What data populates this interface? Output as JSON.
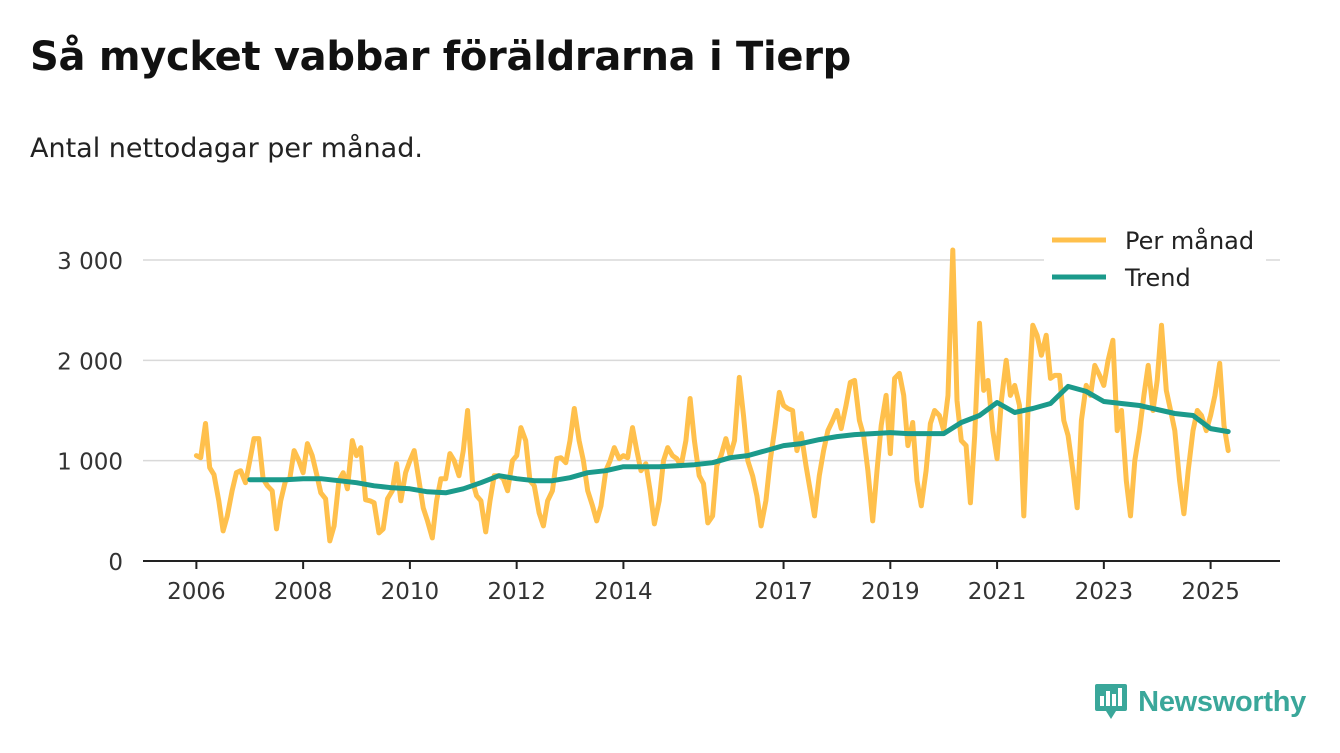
{
  "title": "Så mycket vabbar föräldrarna i Tierp",
  "subtitle": "Antal nettodagar per månad.",
  "brand": {
    "name": "Newsworthy"
  },
  "colors": {
    "monthly": "#ffc04c",
    "trend": "#1b9a8b",
    "grid": "#d9d9d9",
    "axis": "#222222",
    "brand": "#3aa79a"
  },
  "chart_data": {
    "type": "line",
    "title": "Så mycket vabbar föräldrarna i Tierp",
    "xlabel": "",
    "ylabel": "",
    "ylim": [
      0,
      3000
    ],
    "xlim": [
      2005.0,
      2026.3
    ],
    "grid": true,
    "legend_position": "top-right",
    "yticks": [
      0,
      1000,
      2000,
      3000
    ],
    "ytick_labels": [
      "0",
      "1 000",
      "2 000",
      "3 000"
    ],
    "xticks": [
      2006,
      2008,
      2010,
      2012,
      2014,
      2017,
      2019,
      2021,
      2023,
      2025
    ],
    "xtick_labels": [
      "2006",
      "2008",
      "2010",
      "2012",
      "2014",
      "2017",
      "2019",
      "2021",
      "2023",
      "2025"
    ],
    "series": [
      {
        "name": "Per månad",
        "x": [
          2006.0,
          2006.08,
          2006.17,
          2006.25,
          2006.33,
          2006.42,
          2006.5,
          2006.58,
          2006.67,
          2006.75,
          2006.83,
          2006.92,
          2007.0,
          2007.08,
          2007.17,
          2007.25,
          2007.33,
          2007.42,
          2007.5,
          2007.58,
          2007.67,
          2007.75,
          2007.83,
          2007.92,
          2008.0,
          2008.08,
          2008.17,
          2008.25,
          2008.33,
          2008.42,
          2008.5,
          2008.58,
          2008.67,
          2008.75,
          2008.83,
          2008.92,
          2009.0,
          2009.08,
          2009.17,
          2009.25,
          2009.33,
          2009.42,
          2009.5,
          2009.58,
          2009.67,
          2009.75,
          2009.83,
          2009.92,
          2010.0,
          2010.08,
          2010.17,
          2010.25,
          2010.33,
          2010.42,
          2010.5,
          2010.58,
          2010.67,
          2010.75,
          2010.83,
          2010.92,
          2011.0,
          2011.08,
          2011.17,
          2011.25,
          2011.33,
          2011.42,
          2011.5,
          2011.58,
          2011.67,
          2011.75,
          2011.83,
          2011.92,
          2012.0,
          2012.08,
          2012.17,
          2012.25,
          2012.33,
          2012.42,
          2012.5,
          2012.58,
          2012.67,
          2012.75,
          2012.83,
          2012.92,
          2013.0,
          2013.08,
          2013.17,
          2013.25,
          2013.33,
          2013.42,
          2013.5,
          2013.58,
          2013.67,
          2013.75,
          2013.83,
          2013.92,
          2014.0,
          2014.08,
          2014.17,
          2014.25,
          2014.33,
          2014.42,
          2014.5,
          2014.58,
          2014.67,
          2014.75,
          2014.83,
          2014.92,
          2015.0,
          2015.08,
          2015.17,
          2015.25,
          2015.33,
          2015.42,
          2015.5,
          2015.58,
          2015.67,
          2015.75,
          2015.83,
          2015.92,
          2016.0,
          2016.08,
          2016.17,
          2016.25,
          2016.33,
          2016.42,
          2016.5,
          2016.58,
          2016.67,
          2016.75,
          2016.83,
          2016.92,
          2017.0,
          2017.08,
          2017.17,
          2017.25,
          2017.33,
          2017.42,
          2017.5,
          2017.58,
          2017.67,
          2017.75,
          2017.83,
          2017.92,
          2018.0,
          2018.08,
          2018.17,
          2018.25,
          2018.33,
          2018.42,
          2018.5,
          2018.58,
          2018.67,
          2018.75,
          2018.83,
          2018.92,
          2019.0,
          2019.08,
          2019.17,
          2019.25,
          2019.33,
          2019.42,
          2019.5,
          2019.58,
          2019.67,
          2019.75,
          2019.83,
          2019.92,
          2020.0,
          2020.08,
          2020.17,
          2020.25,
          2020.33,
          2020.42,
          2020.5,
          2020.58,
          2020.67,
          2020.75,
          2020.83,
          2020.92,
          2021.0,
          2021.08,
          2021.17,
          2021.25,
          2021.33,
          2021.42,
          2021.5,
          2021.58,
          2021.67,
          2021.75,
          2021.83,
          2021.92,
          2022.0,
          2022.08,
          2022.17,
          2022.25,
          2022.33,
          2022.42,
          2022.5,
          2022.58,
          2022.67,
          2022.75,
          2022.83,
          2022.92,
          2023.0,
          2023.08,
          2023.17,
          2023.25,
          2023.33,
          2023.42,
          2023.5,
          2023.58,
          2023.67,
          2023.75,
          2023.83,
          2023.92,
          2024.0,
          2024.08,
          2024.17,
          2024.25,
          2024.33,
          2024.42,
          2024.5,
          2024.58,
          2024.67,
          2024.75,
          2024.83,
          2024.92,
          2025.0,
          2025.08,
          2025.17,
          2025.25,
          2025.33
        ],
        "values": [
          1050,
          1030,
          1370,
          930,
          860,
          600,
          300,
          450,
          700,
          880,
          900,
          780,
          1000,
          1220,
          1220,
          820,
          750,
          700,
          320,
          600,
          800,
          820,
          1100,
          1000,
          880,
          1170,
          1050,
          870,
          680,
          620,
          200,
          350,
          800,
          880,
          720,
          1200,
          1050,
          1130,
          610,
          600,
          580,
          280,
          320,
          620,
          700,
          970,
          600,
          880,
          1000,
          1100,
          800,
          530,
          400,
          230,
          600,
          820,
          820,
          1070,
          1000,
          850,
          1100,
          1500,
          800,
          650,
          600,
          290,
          600,
          850,
          850,
          820,
          700,
          1000,
          1050,
          1330,
          1200,
          800,
          750,
          480,
          350,
          600,
          700,
          1020,
          1030,
          980,
          1200,
          1520,
          1200,
          1000,
          700,
          550,
          400,
          550,
          900,
          1000,
          1130,
          1020,
          1050,
          1030,
          1330,
          1100,
          900,
          970,
          700,
          370,
          600,
          1000,
          1130,
          1050,
          1020,
          950,
          1200,
          1620,
          1200,
          850,
          770,
          380,
          450,
          950,
          1050,
          1220,
          1050,
          1200,
          1830,
          1450,
          1000,
          850,
          650,
          350,
          600,
          1000,
          1300,
          1680,
          1550,
          1520,
          1500,
          1100,
          1270,
          950,
          700,
          450,
          850,
          1100,
          1300,
          1400,
          1500,
          1320,
          1550,
          1780,
          1800,
          1400,
          1250,
          900,
          400,
          900,
          1350,
          1650,
          1070,
          1820,
          1870,
          1650,
          1150,
          1380,
          800,
          550,
          900,
          1370,
          1500,
          1450,
          1300,
          1650,
          3100,
          1600,
          1200,
          1150,
          580,
          1250,
          2370,
          1700,
          1800,
          1300,
          1020,
          1600,
          2000,
          1650,
          1750,
          1550,
          450,
          1500,
          2350,
          2250,
          2050,
          2250,
          1820,
          1850,
          1850,
          1400,
          1250,
          900,
          530,
          1400,
          1750,
          1650,
          1950,
          1850,
          1750,
          2000,
          2200,
          1300,
          1500,
          800,
          450,
          1000,
          1300,
          1650,
          1950,
          1500,
          1800,
          2350,
          1700,
          1500,
          1300,
          800,
          470,
          900,
          1300,
          1500,
          1450,
          1300,
          1450,
          1650,
          1970,
          1350,
          1100
        ]
      },
      {
        "name": "Trend",
        "x": [
          2007.0,
          2007.33,
          2007.67,
          2008.0,
          2008.33,
          2008.67,
          2009.0,
          2009.33,
          2009.67,
          2010.0,
          2010.33,
          2010.67,
          2011.0,
          2011.33,
          2011.67,
          2012.0,
          2012.33,
          2012.67,
          2013.0,
          2013.33,
          2013.67,
          2014.0,
          2014.33,
          2014.67,
          2015.0,
          2015.33,
          2015.67,
          2016.0,
          2016.33,
          2016.67,
          2017.0,
          2017.33,
          2017.67,
          2018.0,
          2018.33,
          2018.67,
          2019.0,
          2019.33,
          2019.67,
          2020.0,
          2020.33,
          2020.67,
          2021.0,
          2021.33,
          2021.67,
          2022.0,
          2022.33,
          2022.67,
          2023.0,
          2023.33,
          2023.67,
          2024.0,
          2024.33,
          2024.67,
          2025.0,
          2025.33
        ],
        "values": [
          810,
          810,
          810,
          820,
          820,
          800,
          780,
          750,
          730,
          720,
          690,
          680,
          720,
          780,
          850,
          820,
          800,
          800,
          830,
          880,
          900,
          940,
          940,
          940,
          950,
          960,
          980,
          1030,
          1050,
          1100,
          1150,
          1170,
          1210,
          1240,
          1260,
          1270,
          1280,
          1270,
          1270,
          1270,
          1380,
          1450,
          1580,
          1480,
          1520,
          1570,
          1740,
          1690,
          1590,
          1570,
          1550,
          1510,
          1470,
          1450,
          1320,
          1290
        ]
      }
    ]
  }
}
